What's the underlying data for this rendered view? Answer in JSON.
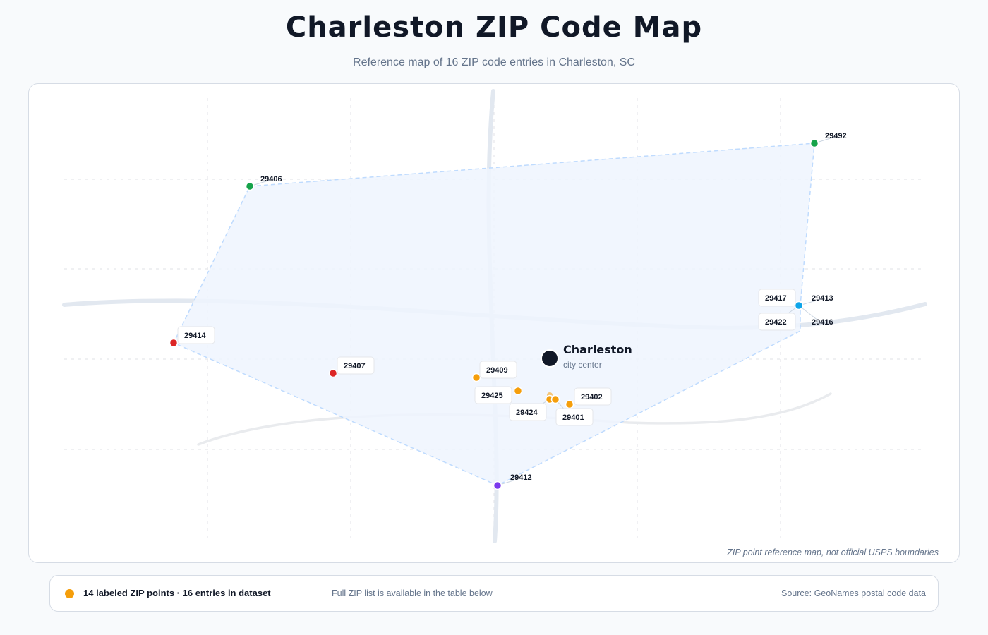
{
  "header": {
    "title": "Charleston ZIP Code Map",
    "subtitle": "Reference map of 16 ZIP code entries in Charleston, SC"
  },
  "map": {
    "city": {
      "name": "Charleston",
      "sublabel": "city center"
    },
    "disclaimer": "ZIP point reference map, not official USPS boundaries",
    "colors": {
      "outline_fill": "#eef4fe",
      "outline_stroke": "#bfdbfe",
      "road": "#e2e8f0",
      "grid": "#e5e7eb",
      "city_marker": "#111827"
    },
    "zip_points": [
      {
        "zip": "29492",
        "color": "#16a34a"
      },
      {
        "zip": "29406",
        "color": "#16a34a"
      },
      {
        "zip": "29414",
        "color": "#dc2626"
      },
      {
        "zip": "29407",
        "color": "#dc2626"
      },
      {
        "zip": "29409",
        "color": "#f59e0b"
      },
      {
        "zip": "29425",
        "color": "#f59e0b"
      },
      {
        "zip": "29424",
        "color": "#f59e0b"
      },
      {
        "zip": "29402",
        "color": "#f59e0b"
      },
      {
        "zip": "29401",
        "color": "#f59e0b"
      },
      {
        "zip": "29412",
        "color": "#7c3aed"
      },
      {
        "zip": "29417",
        "color": "#0ea5e9"
      },
      {
        "zip": "29413",
        "color": "#0ea5e9"
      },
      {
        "zip": "29422",
        "color": "#0ea5e9"
      },
      {
        "zip": "29416",
        "color": "#0ea5e9"
      }
    ]
  },
  "legend": {
    "dot_color": "#f59e0b",
    "count_text": "14 labeled ZIP points · 16 entries in dataset",
    "note": "Full ZIP list is available in the table below",
    "source": "Source: GeoNames postal code data"
  }
}
